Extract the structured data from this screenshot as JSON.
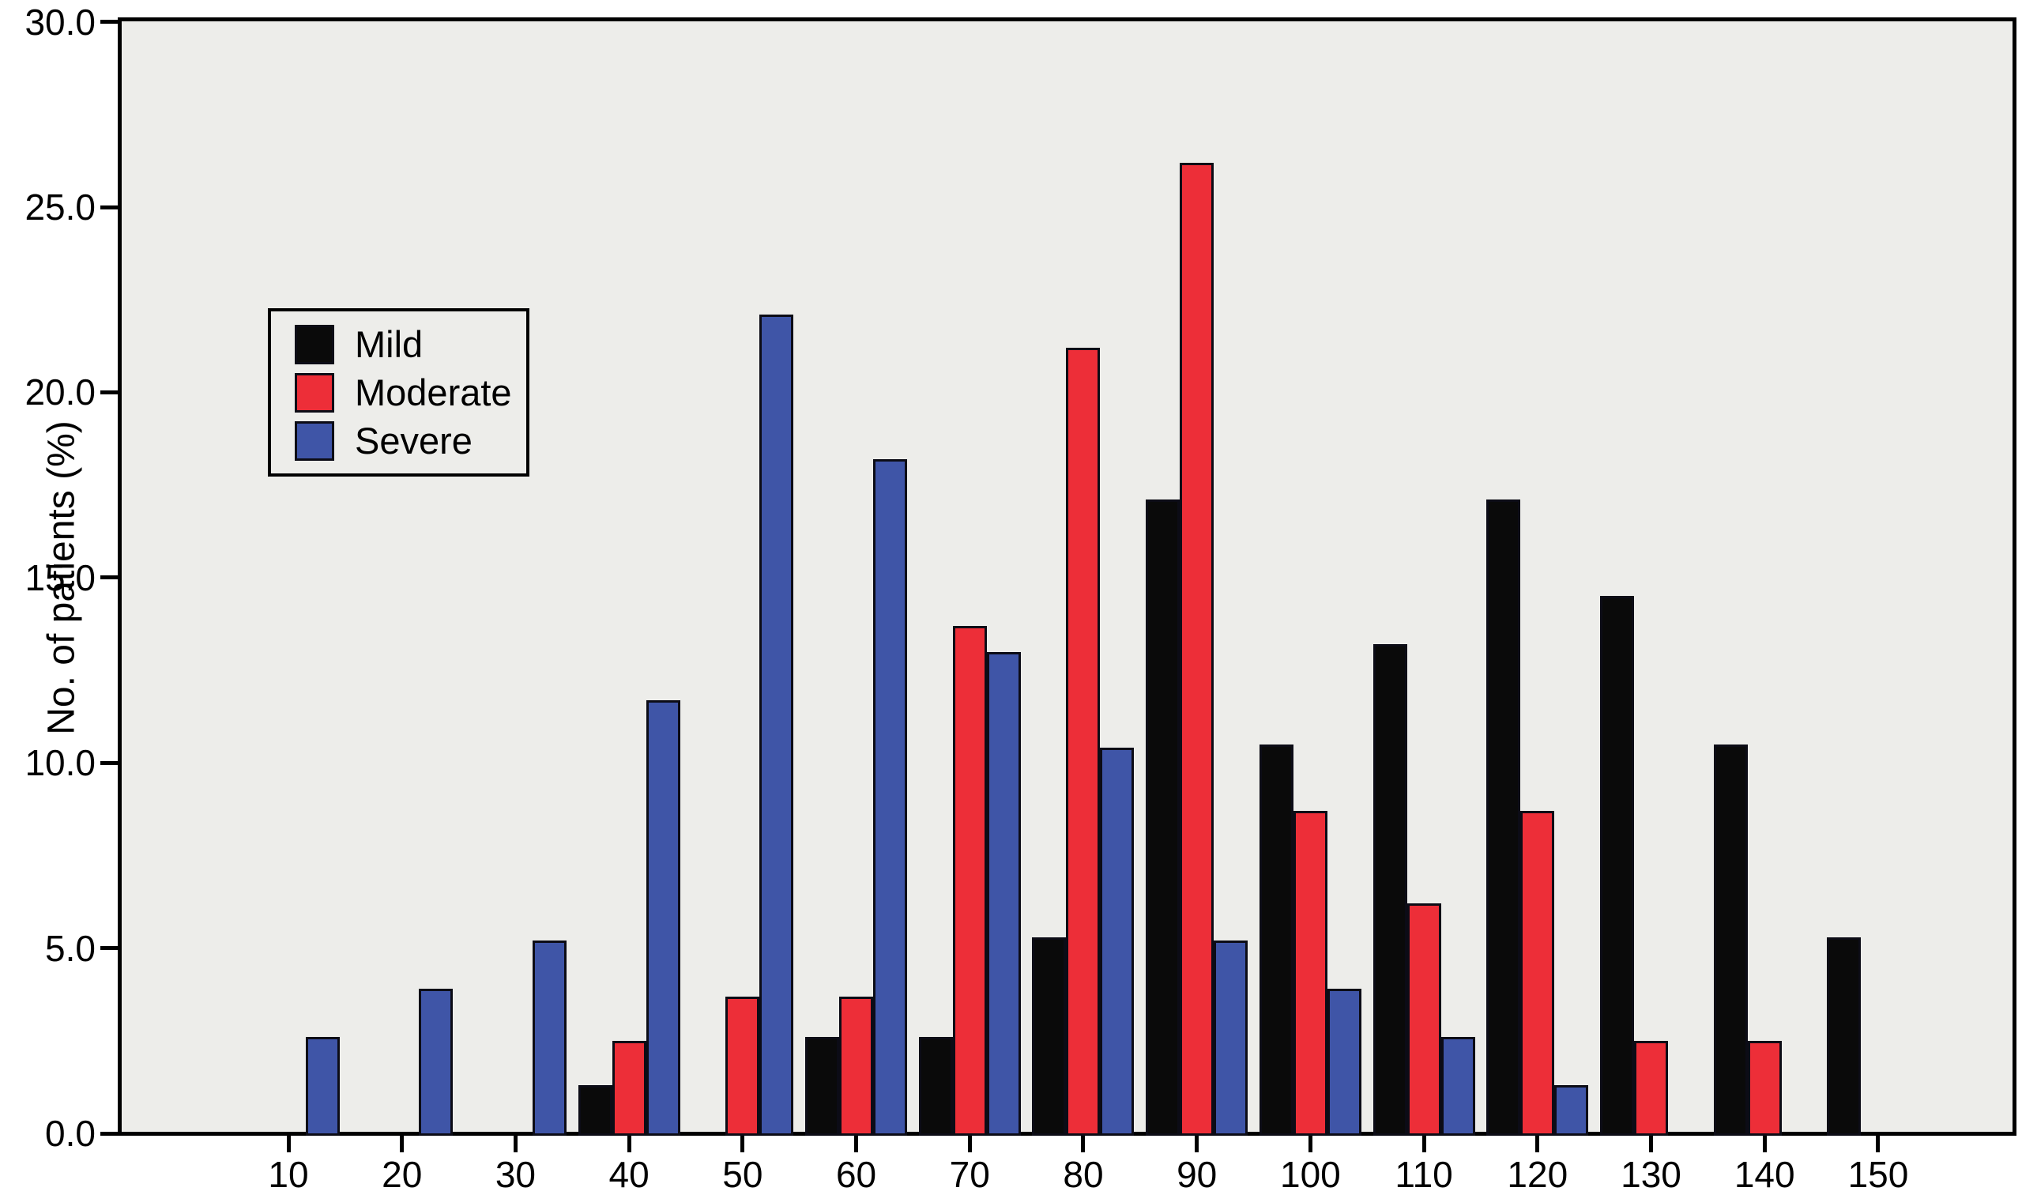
{
  "figure": {
    "y_axis_title": "No. of patients (%)"
  },
  "colors": {
    "mild": "#0A0A0A",
    "moderate": "#ED2E38",
    "severe": "#3F55A7",
    "plot_background": "#EDEDEA",
    "axis": "#000000",
    "bar_outline": "#0C0C16"
  },
  "legend": {
    "items": [
      {
        "label": "Mild",
        "color": "#0A0A0A"
      },
      {
        "label": "Moderate",
        "color": "#ED2E38"
      },
      {
        "label": "Severe",
        "color": "#3F55A7"
      }
    ]
  },
  "chart_data": {
    "type": "bar",
    "title": "",
    "xlabel": "",
    "ylabel": "No. of patients (%)",
    "categories": [
      "10",
      "20",
      "30",
      "40",
      "50",
      "60",
      "70",
      "80",
      "90",
      "100",
      "110",
      "120",
      "130",
      "140",
      "150"
    ],
    "series": [
      {
        "name": "Mild",
        "color": "#0A0A0A",
        "values": [
          0,
          0,
          0,
          1.3,
          0,
          2.6,
          2.6,
          5.3,
          17.1,
          10.5,
          13.2,
          17.1,
          14.5,
          10.5,
          5.3
        ]
      },
      {
        "name": "Moderate",
        "color": "#ED2E38",
        "values": [
          0,
          0,
          0,
          2.5,
          3.7,
          3.7,
          13.7,
          21.2,
          26.2,
          8.7,
          6.2,
          8.7,
          2.5,
          2.5,
          0
        ]
      },
      {
        "name": "Severe",
        "color": "#3F55A7",
        "values": [
          2.6,
          3.9,
          5.2,
          11.7,
          22.1,
          18.2,
          13.0,
          10.4,
          5.2,
          3.9,
          2.6,
          1.3,
          0,
          0,
          0
        ]
      }
    ],
    "ylim": [
      0,
      30
    ],
    "y_ticks": [
      0,
      5,
      10,
      15,
      20,
      25,
      30
    ],
    "y_tick_labels": [
      "0.0",
      "5.0",
      "10.0",
      "15.0",
      "20.0",
      "25.0",
      "30.0"
    ],
    "grid": false,
    "legend_position": "upper-left-inside"
  }
}
